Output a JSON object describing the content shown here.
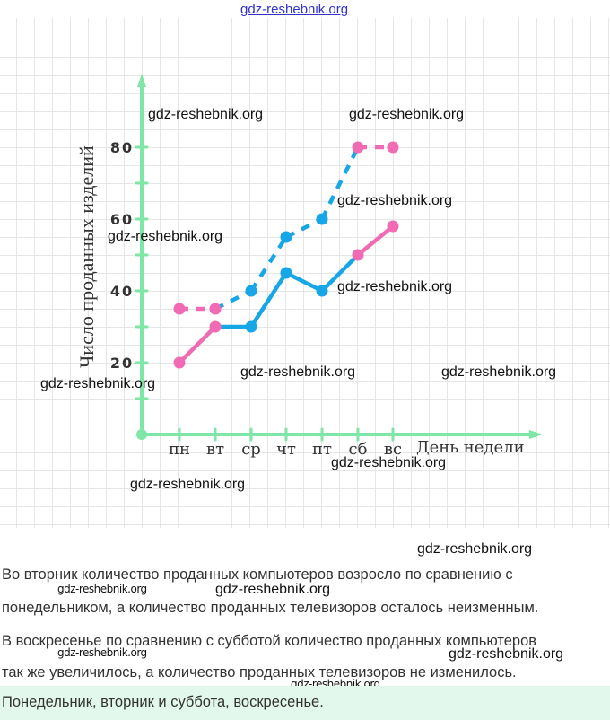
{
  "chart_data": {
    "type": "line",
    "ylabel": "Число проданных изделий",
    "xlabel": "День недели",
    "categories": [
      "пн",
      "вт",
      "ср",
      "чт",
      "пт",
      "сб",
      "вс"
    ],
    "yticks": [
      20,
      40,
      60,
      80
    ],
    "ylim": [
      0,
      85
    ],
    "grid": true,
    "series": [
      {
        "style": "solid",
        "values": [
          20,
          30,
          30,
          45,
          40,
          50,
          58
        ],
        "point_colors": [
          "#f06ab4",
          "#f06ab4",
          "#17a6e6",
          "#17a6e6",
          "#17a6e6",
          "#f06ab4",
          "#f06ab4"
        ]
      },
      {
        "style": "dashed",
        "values": [
          35,
          35,
          40,
          55,
          60,
          80,
          80
        ],
        "point_colors": [
          "#f06ab4",
          "#f06ab4",
          "#17a6e6",
          "#17a6e6",
          "#17a6e6",
          "#f06ab4",
          "#f06ab4"
        ]
      }
    ],
    "colors": {
      "axis": "#7ee6a6",
      "pink": "#f06ab4",
      "blue": "#17a6e6"
    }
  },
  "text": {
    "p1_line1": "Во вторник количество проданных компьютеров возросло по сравнению с",
    "p1_line2": "понедельником, а количество проданных телевизоров осталось неизменным.",
    "p2_line1": "В воскресенье по сравнению с субботой количество проданных компьютеров",
    "p2_line2": "так же увеличилось, а количество проданных телевизоров не изменилось.",
    "answer": "Понедельник, вторник и суббота, воскресенье."
  },
  "watermark": "gdz-reshebnik.org"
}
